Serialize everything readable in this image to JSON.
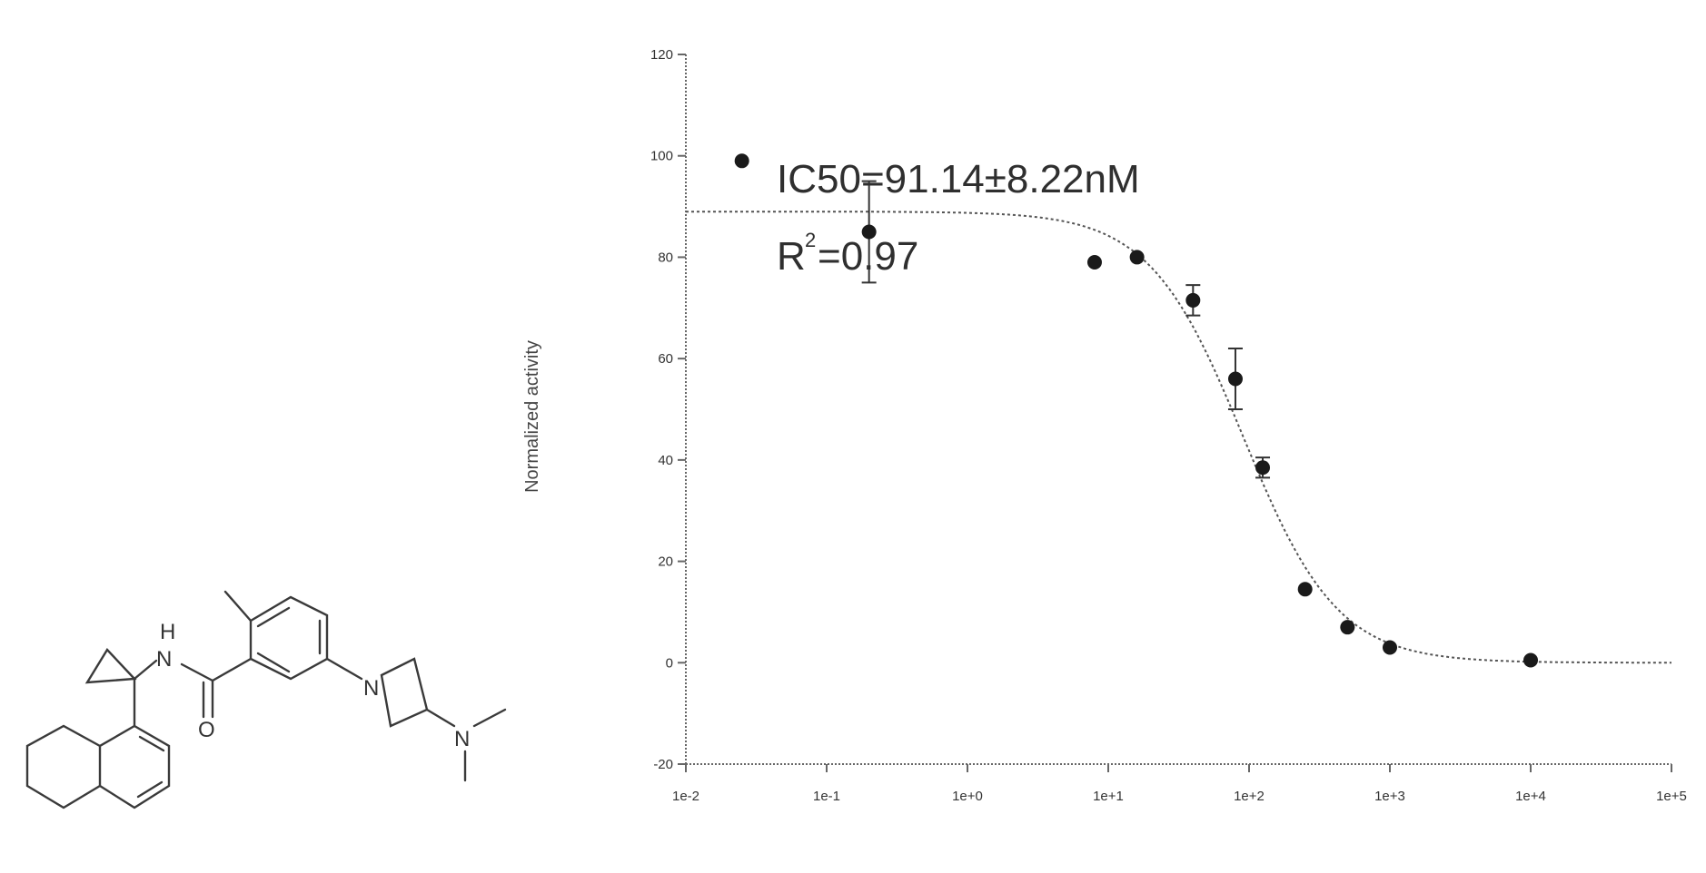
{
  "chart_data": {
    "type": "scatter",
    "title": "",
    "xlabel": "",
    "ylabel": "Normalized activity",
    "x_scale": "log",
    "xlim": [
      0.01,
      100000
    ],
    "ylim": [
      -20,
      120
    ],
    "x_tick_labels": [
      "1e-2",
      "1e-1",
      "1e+0",
      "1e+1",
      "1e+2",
      "1e+3",
      "1e+4",
      "1e+5"
    ],
    "y_tick_labels": [
      "-20",
      "0",
      "20",
      "40",
      "60",
      "80",
      "100",
      "120"
    ],
    "y_ticks": [
      -20,
      0,
      20,
      40,
      60,
      80,
      100,
      120
    ],
    "series": [
      {
        "points": [
          {
            "x": 0.025,
            "y": 99,
            "err": 0
          },
          {
            "x": 0.2,
            "y": 85,
            "err": 10
          },
          {
            "x": 8,
            "y": 79,
            "err": 0
          },
          {
            "x": 16,
            "y": 80,
            "err": 0
          },
          {
            "x": 40,
            "y": 71.5,
            "err": 3
          },
          {
            "x": 80,
            "y": 56,
            "err": 6
          },
          {
            "x": 125,
            "y": 38.5,
            "err": 2
          },
          {
            "x": 250,
            "y": 14.5,
            "err": 0
          },
          {
            "x": 500,
            "y": 7,
            "err": 0
          },
          {
            "x": 1000,
            "y": 3,
            "err": 0
          },
          {
            "x": 10000,
            "y": 0.5,
            "err": 0
          }
        ]
      }
    ],
    "fit": {
      "model": "four-parameter logistic",
      "top": 89,
      "bottom": 0,
      "ic50_nM": 91.14,
      "hill": 1.3
    },
    "annotation": {
      "ic50_text": "IC50=91.14±8.22nM",
      "r2_prefix": "R",
      "r2_exponent": "2",
      "r2_value": "=0.97"
    },
    "grid": false,
    "legend": "none"
  },
  "molecule": {
    "atoms": {
      "nh_n": "N",
      "nh_h": "H",
      "carbonyl_o": "O",
      "azetidine_n": "N",
      "amine_n": "N"
    }
  }
}
